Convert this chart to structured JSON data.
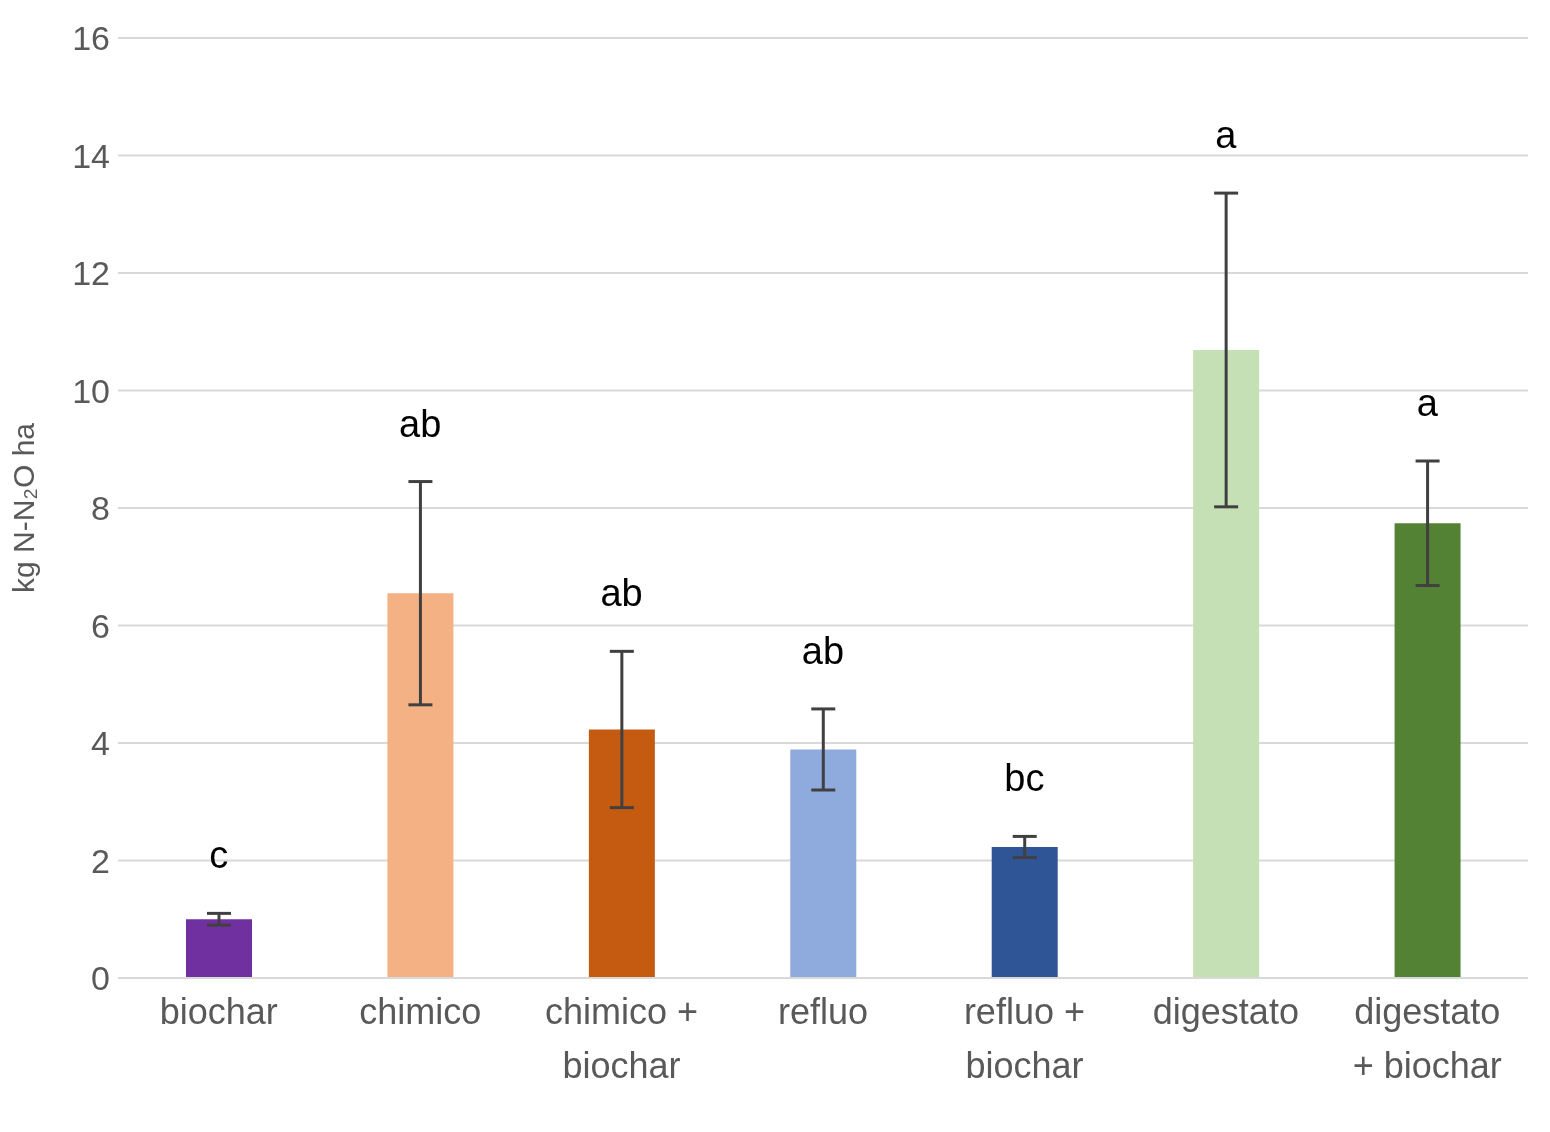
{
  "chart_data": {
    "type": "bar",
    "ylabel": "kg N-N₂O ha",
    "categories": [
      "biochar",
      "chimico",
      "chimico + biochar",
      "refluo",
      "refluo + biochar",
      "digestato",
      "digestato + biochar"
    ],
    "values": [
      1.0,
      6.55,
      4.23,
      3.89,
      2.23,
      10.69,
      7.74
    ],
    "colors": [
      "#7030a0",
      "#f4b183",
      "#c55a11",
      "#8faadc",
      "#2f5597",
      "#c5e0b4",
      "#548235"
    ],
    "errors": [
      0.1,
      1.9,
      1.33,
      0.69,
      0.18,
      2.67,
      1.06
    ],
    "ylim": [
      0,
      16
    ],
    "yticks": [
      0,
      2,
      4,
      6,
      8,
      10,
      12,
      14,
      16
    ],
    "grid": "y",
    "legend": false,
    "annotations": [
      "c",
      "ab",
      "ab",
      "ab",
      "bc",
      "a",
      "a"
    ]
  }
}
